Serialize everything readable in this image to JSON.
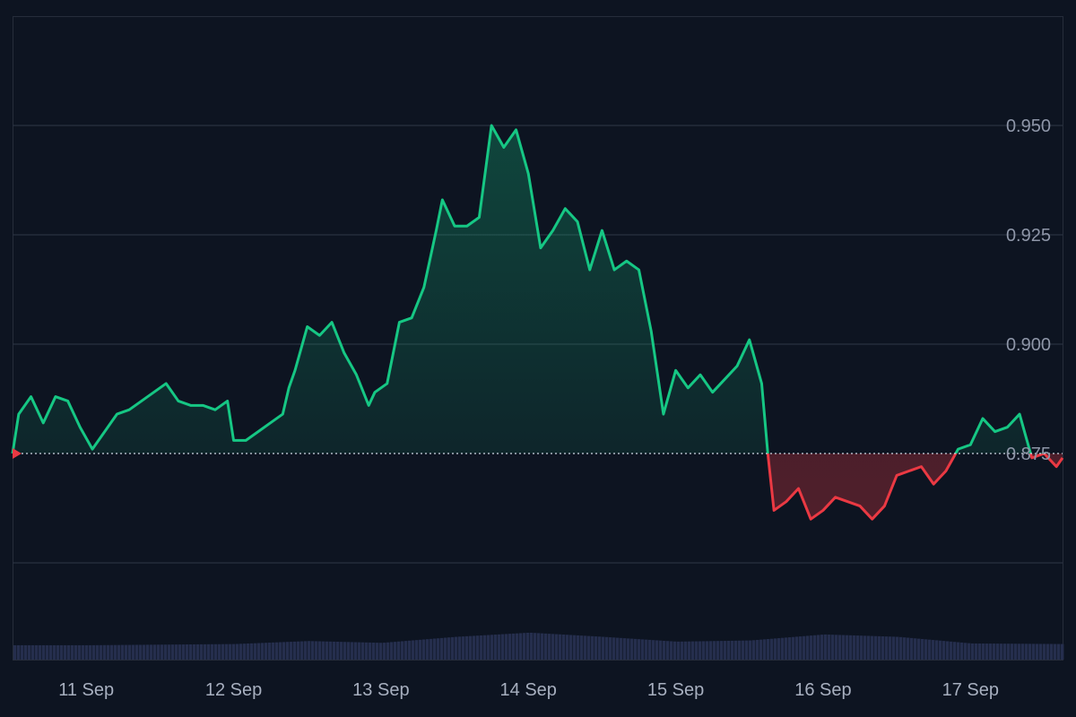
{
  "chart_data": {
    "type": "area",
    "baseline": 0.875,
    "baseline_label": "0.875",
    "ylim": [
      0.85,
      0.975
    ],
    "yticks": [
      {
        "value": 0.95,
        "label": "0.950"
      },
      {
        "value": 0.925,
        "label": "0.925"
      },
      {
        "value": 0.9,
        "label": "0.900"
      },
      {
        "value": 0.875,
        "label": "0.875"
      }
    ],
    "xlim": [
      "2024-09-10T12:00",
      "2024-09-17T15:00"
    ],
    "xticks": [
      {
        "value": "2024-09-11T00:00",
        "label": "11 Sep"
      },
      {
        "value": "2024-09-12T00:00",
        "label": "12 Sep"
      },
      {
        "value": "2024-09-13T00:00",
        "label": "13 Sep"
      },
      {
        "value": "2024-09-14T00:00",
        "label": "14 Sep"
      },
      {
        "value": "2024-09-15T00:00",
        "label": "15 Sep"
      },
      {
        "value": "2024-09-16T00:00",
        "label": "16 Sep"
      },
      {
        "value": "2024-09-17T00:00",
        "label": "17 Sep"
      }
    ],
    "series": [
      {
        "kind": "price",
        "points": [
          [
            "2024-09-10T12:00",
            0.875
          ],
          [
            "2024-09-10T13:00",
            0.884
          ],
          [
            "2024-09-10T15:00",
            0.888
          ],
          [
            "2024-09-10T17:00",
            0.882
          ],
          [
            "2024-09-10T19:00",
            0.888
          ],
          [
            "2024-09-10T21:00",
            0.887
          ],
          [
            "2024-09-10T23:00",
            0.881
          ],
          [
            "2024-09-11T01:00",
            0.876
          ],
          [
            "2024-09-11T03:00",
            0.88
          ],
          [
            "2024-09-11T05:00",
            0.884
          ],
          [
            "2024-09-11T07:00",
            0.885
          ],
          [
            "2024-09-11T09:00",
            0.887
          ],
          [
            "2024-09-11T11:00",
            0.889
          ],
          [
            "2024-09-11T13:00",
            0.891
          ],
          [
            "2024-09-11T15:00",
            0.887
          ],
          [
            "2024-09-11T17:00",
            0.886
          ],
          [
            "2024-09-11T19:00",
            0.886
          ],
          [
            "2024-09-11T21:00",
            0.885
          ],
          [
            "2024-09-11T23:00",
            0.887
          ],
          [
            "2024-09-12T00:00",
            0.878
          ],
          [
            "2024-09-12T02:00",
            0.878
          ],
          [
            "2024-09-12T04:00",
            0.88
          ],
          [
            "2024-09-12T06:00",
            0.882
          ],
          [
            "2024-09-12T08:00",
            0.884
          ],
          [
            "2024-09-12T09:00",
            0.89
          ],
          [
            "2024-09-12T10:00",
            0.894
          ],
          [
            "2024-09-12T12:00",
            0.904
          ],
          [
            "2024-09-12T14:00",
            0.902
          ],
          [
            "2024-09-12T16:00",
            0.905
          ],
          [
            "2024-09-12T18:00",
            0.898
          ],
          [
            "2024-09-12T20:00",
            0.893
          ],
          [
            "2024-09-12T22:00",
            0.886
          ],
          [
            "2024-09-12T23:00",
            0.889
          ],
          [
            "2024-09-13T01:00",
            0.891
          ],
          [
            "2024-09-13T03:00",
            0.905
          ],
          [
            "2024-09-13T05:00",
            0.906
          ],
          [
            "2024-09-13T07:00",
            0.913
          ],
          [
            "2024-09-13T09:00",
            0.926
          ],
          [
            "2024-09-13T10:00",
            0.933
          ],
          [
            "2024-09-13T12:00",
            0.927
          ],
          [
            "2024-09-13T14:00",
            0.927
          ],
          [
            "2024-09-13T16:00",
            0.929
          ],
          [
            "2024-09-13T18:00",
            0.95
          ],
          [
            "2024-09-13T20:00",
            0.945
          ],
          [
            "2024-09-13T22:00",
            0.949
          ],
          [
            "2024-09-14T00:00",
            0.939
          ],
          [
            "2024-09-14T02:00",
            0.922
          ],
          [
            "2024-09-14T04:00",
            0.926
          ],
          [
            "2024-09-14T06:00",
            0.931
          ],
          [
            "2024-09-14T08:00",
            0.928
          ],
          [
            "2024-09-14T10:00",
            0.917
          ],
          [
            "2024-09-14T12:00",
            0.926
          ],
          [
            "2024-09-14T14:00",
            0.917
          ],
          [
            "2024-09-14T16:00",
            0.919
          ],
          [
            "2024-09-14T18:00",
            0.917
          ],
          [
            "2024-09-14T20:00",
            0.903
          ],
          [
            "2024-09-14T22:00",
            0.884
          ],
          [
            "2024-09-15T00:00",
            0.894
          ],
          [
            "2024-09-15T02:00",
            0.89
          ],
          [
            "2024-09-15T04:00",
            0.893
          ],
          [
            "2024-09-15T06:00",
            0.889
          ],
          [
            "2024-09-15T08:00",
            0.892
          ],
          [
            "2024-09-15T10:00",
            0.895
          ],
          [
            "2024-09-15T12:00",
            0.901
          ],
          [
            "2024-09-15T14:00",
            0.891
          ],
          [
            "2024-09-15T15:00",
            0.875
          ],
          [
            "2024-09-15T16:00",
            0.862
          ],
          [
            "2024-09-15T18:00",
            0.864
          ],
          [
            "2024-09-15T20:00",
            0.867
          ],
          [
            "2024-09-15T22:00",
            0.86
          ],
          [
            "2024-09-16T00:00",
            0.862
          ],
          [
            "2024-09-16T02:00",
            0.865
          ],
          [
            "2024-09-16T04:00",
            0.864
          ],
          [
            "2024-09-16T06:00",
            0.863
          ],
          [
            "2024-09-16T08:00",
            0.86
          ],
          [
            "2024-09-16T10:00",
            0.863
          ],
          [
            "2024-09-16T12:00",
            0.87
          ],
          [
            "2024-09-16T14:00",
            0.871
          ],
          [
            "2024-09-16T16:00",
            0.872
          ],
          [
            "2024-09-16T18:00",
            0.868
          ],
          [
            "2024-09-16T20:00",
            0.871
          ],
          [
            "2024-09-16T22:00",
            0.876
          ],
          [
            "2024-09-17T00:00",
            0.877
          ],
          [
            "2024-09-17T02:00",
            0.883
          ],
          [
            "2024-09-17T04:00",
            0.88
          ],
          [
            "2024-09-17T06:00",
            0.881
          ],
          [
            "2024-09-17T08:00",
            0.884
          ],
          [
            "2024-09-17T10:00",
            0.874
          ],
          [
            "2024-09-17T12:00",
            0.875
          ],
          [
            "2024-09-17T14:00",
            0.872
          ],
          [
            "2024-09-17T15:00",
            0.874
          ]
        ]
      },
      {
        "kind": "volume",
        "points": [
          [
            "2024-09-10T12:00",
            0.24
          ],
          [
            "2024-09-11T00:00",
            0.24
          ],
          [
            "2024-09-11T12:00",
            0.25
          ],
          [
            "2024-09-12T00:00",
            0.26
          ],
          [
            "2024-09-12T12:00",
            0.31
          ],
          [
            "2024-09-13T00:00",
            0.28
          ],
          [
            "2024-09-13T12:00",
            0.38
          ],
          [
            "2024-09-14T00:00",
            0.45
          ],
          [
            "2024-09-14T12:00",
            0.38
          ],
          [
            "2024-09-15T00:00",
            0.3
          ],
          [
            "2024-09-15T12:00",
            0.32
          ],
          [
            "2024-09-16T00:00",
            0.42
          ],
          [
            "2024-09-16T12:00",
            0.38
          ],
          [
            "2024-09-17T00:00",
            0.27
          ],
          [
            "2024-09-17T15:00",
            0.26
          ]
        ]
      }
    ],
    "colors": {
      "background": "#0d1421",
      "up": "#16c784",
      "down": "#ea3943",
      "grid": "#2a3140",
      "volume": "#252e4d",
      "baseline": "#cfd6e4"
    },
    "grid": true
  }
}
